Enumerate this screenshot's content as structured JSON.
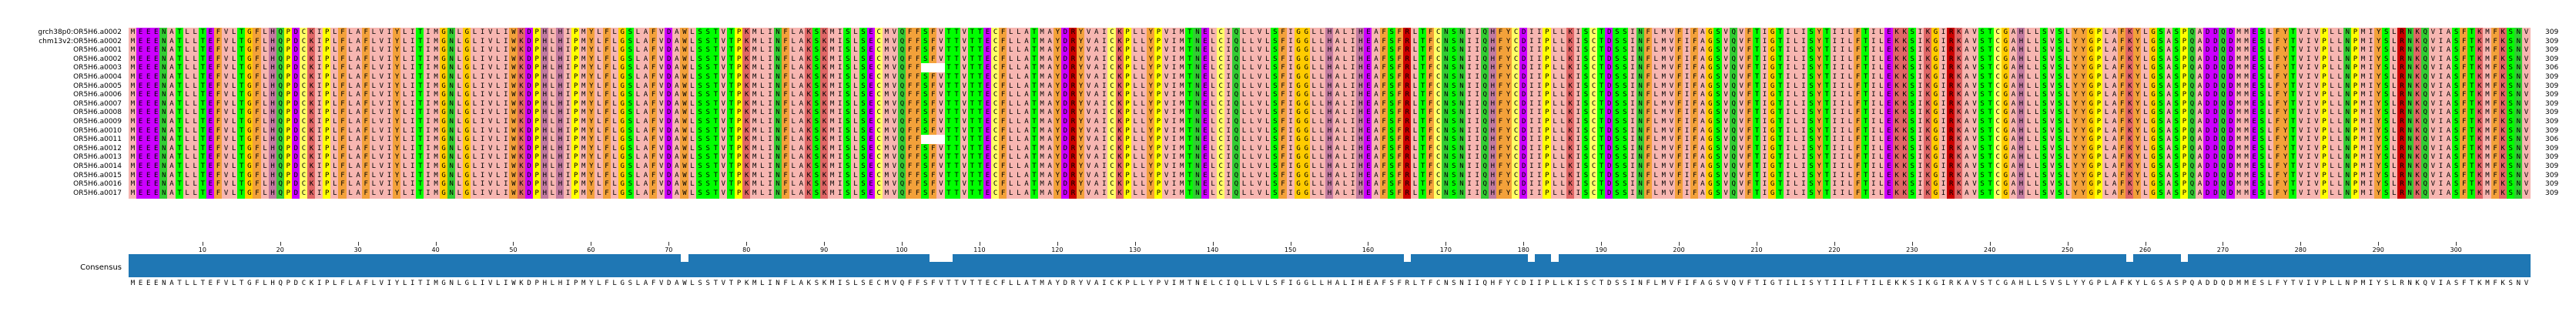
{
  "alignment": {
    "sequences": [
      {
        "name": "grch38p0:OR5H6.a0002",
        "count": "309",
        "seq": "MEEENATLLTEFVLTGFLHQPDCKIPLFLAFLVIYLITIMGNLGLIVLIWKDPHLHIPMYLFLGSLAFVDAWLSSTVTPKMLINFLAKSKMISLSECMVQFFSFVTTVTTECFLLATMAYDRYVAICKPLLYPVIMTNELCIQLLVLSFIGGLLHALIHEAFSFRLTFCNSNIIQHFYCDIIPLLKISCTDSSINFLMVFIFAGSVQVFTIGTILISYTIILFTILEKKSIKGIRKAVSTCGAHLLSVSLYYGPLAFKYLGSASPQADDQDMMESLFYTVIVPLLNPMIYSLRNKQVIASFTKMFKSNV"
      },
      {
        "name": "chm13v2:OR5H6.a0002",
        "count": "309",
        "seq": "MEEENATLLTEFVLTGFLHQPDCKIPLFLAFLVIYLITIMGNLGLIVLIWKDPHLHIPMYLFLGSLAFVDAWLSSTVTPKMLINFLAKSKMISLSECMVQFFSFVTTVTTECFLLATMAYDRYVAICKPLLYPVIMTNELCIQLLVLSFIGGLLHALIHEAFSFRLTFCNSNIIQHFYCDIIPLLKISCTDSSINFLMVFIFAGSVQVFTIGTILISYTIILFTILEKKSIKGIRKAVSTCGAHLLSVSLYYGPLAFKYLGSASPQADDQDMMESLFYTVIVPLLNPMIYSLRNKQVIASFTKMFKSNV"
      },
      {
        "name": "OR5H6.a0001",
        "count": "309",
        "seq": "MEEENATLLTEFVLTGFLHQPDCKIPLFLAFLVIYLITIMGNLGLIVLIWKDPHLHIPMYLFLGSLAFVDAWLSSTVTPKMLINFLAKSKMISLSECMVQFFSFVTTVTTECFLLATMAYDRYVAICKPLLYPVIMTNELCIQLLVLSFIGGLLHALIHEAFSFRLTFCNSNIIQHFYCDIIPLLKISCTDSSINFLMVFIFAGSVQVFTIGTILISYTIILFTILEKKSIKGIRKAVSTCGAHLLSVSLYYGPLAFKYLGSASPQADDQDMMESLFYTVIVPLLNPMIYSLRNKQVIASFTKMFKSNV"
      },
      {
        "name": "OR5H6.a0002",
        "count": "309",
        "seq": "MEEENATLLTEFVLTGFLHQPDCKIPLFLAFLVIYLITIMGNLGLIVLIWKDPHLHIPMYLFLGSLAFVDAWLSSTVTPKMLINFLAKSKMISLSECMVQFFSFVTTVTTECFLLATMAYDRYVAICKPLLYPVIMTNELCIQLLVLSFIGGLLHALIHEAFSFRLTFCNSNIIQHFYCDIIPLLKISCTDSSINFLMVFIFAGSVQVFTIGTILISYTIILFTILEKKSIKGIRKAVSTCGAHLLSVSLYYGPLAFKYLGSASPQADDQDMMESLFYTVIVPLLNPMIYSLRNKQVIASFTKMFKSNV"
      },
      {
        "name": "OR5H6.a0003",
        "count": "306",
        "seq": "MEEENATLLTEFVLTGFLHQPDCKIPLFLAFLVIYLITIMGNLGLIVLIWKDPHLHIPMYLFLGSLAFVDAWLSSTVTPKMLINFLAKSKMISLSECMVQFF---TTVTTECFLLATMAYDRYVAICKPLLYPVIMTNELCIQLLVLSFIGGLLHALIHEAFSFRLTFCNSNIIQHFYCDIIPLLKISCTDSSINFLMVFIFAGSVQVFTIGTILISYTIILFTILEKKSIKGIRKAVSTCGAHLLSVSLYYGPLAFKYLGSASPQADDQDMMESLFYTVIVPLLNPMIYSLRNKQVIASFTKMFKSNV"
      },
      {
        "name": "OR5H6.a0004",
        "count": "309",
        "seq": "MEEENATLLTEFVLTGFLHQPDCKIPLFLAFLVIYLITIMGNLGLIVLIWKDPHLHIPMYLFLGSLAFVDAWLSSTVTPKMLINFLAKSKMISLSECMVQFFSFVTTVTTECFLLATMAYDRYVAICKPLLYPVIMTNELCIQLLVLSFIGGLLHALIHEAFSFRLTFCNSNIIQHFYCDIIPLLKISCTDSSINFLMVFIFAGSVQVFTIGTILISYTIILFTILEKKSIKGIRKAVSTCGAHLLSVSLYYGPLAFKYLGSASPQADDQDMMESLFYTVIVPLLNPMIYSLRNKQVIASFTKMFKSNV"
      },
      {
        "name": "OR5H6.a0005",
        "count": "309",
        "seq": "MEEENATLLTEFVLTGFLHQPDCKIPLFLAFLVIYLITIMGNLGLIVLIWKDPHLHIPMYLFLGSLAFVDAWLSSTVTPKMLINFLAKSKMISLSECMVQFFSFVTTVTTECFLLATMAYDRYVAICKPLLYPVIMTNELCIQLLVLSFIGGLLHALIHEAFSFRLTFCNSNIIQHFYCDIIPLLKISCTDSSINFLMVFIFAGSVQVFTIGTILISYTIILFTILEKKSIKGIRKAVSTCGAHLLSVSLYYGPLAFKYLGSASPQADDQDMMESLFYTVIVPLLNPMIYSLRNKQVIASFTKMFKSNV"
      },
      {
        "name": "OR5H6.a0006",
        "count": "309",
        "seq": "MEEENATLLTEFVLTGFLHQPDCKIPLFLAFLVIYLITIMGNLGLIVLIWKDPHLHIPMYLFLGSLAFVDAWLSSTVTPKMLINFLAKSKMISLSECMVQFFSFVTTVTTECFLLATMAYDRYVAICKPLLYPVIMTNELCIQLLVLSFIGGLLHALIHEAFSFRLTFCNSNIIQHFYCDIIPLLKISCTDSSINFLMVFIFAGSVQVFTIGTILISYTIILFTILEKKSIKGIRKAVSTCGAHLLSVSLYYGPLAFKYLGSASPQADDQDMMESLFYTVIVPLLNPMIYSLRNKQVIASFTKMFKSNV"
      },
      {
        "name": "OR5H6.a0007",
        "count": "309",
        "seq": "MEEENATLLTEFVLTGFLHQPDCKIPLFLAFLVIYLITIMGNLGLIVLIWKDPHLHIPMYLFLGSLAFVDAWLSSTVTPKMLINFLAKSKMISLSECMVQFFSFVTTVTTECFLLATMAYDRYVAICKPLLYPVIMTNELCIQLLVLSFIGGLLHALIHEAFSFRLTFCNSNIIQHFYCDIIPLLKISCTDSSINFLMVFIFAGSVQVFTIGTILISYTIILFTILEKKSIKGIRKAVSTCGAHLLSVSLYYGPLAFKYLGSASPQADDQDMMESLFYTVIVPLLNPMIYSLRNKQVIASFTKMFKSNV"
      },
      {
        "name": "OR5H6.a0008",
        "count": "309",
        "seq": "MEEENATLLTEFVLTGFLHQPDCKIPLFLAFLVIYLITIMGNLGLIVLIWKDPHLHIPMYLFLGSLAFVDAWLSSTVTPKMLINFLAKSKMISLSECMVQFFSFVTTVTTECFLLATMAYDRYVAICKPLLYPVIMTNELCIQLLVLSFIGGLLHALIHEAFSFRLTFCNSNIIQHFYCDIIPLLKISCTDSSINFLMVFIFAGSVQVFTIGTILISYTIILFTILEKKSIKGIRKAVSTCGAHLLSVSLYYGPLAFKYLGSASPQADDQDMMESLFYTVIVPLLNPMIYSLRNKQVIASFTKMFKSNV"
      },
      {
        "name": "OR5H6.a0009",
        "count": "309",
        "seq": "MEEENATLLTEFVLTGFLHQPDCKIPLFLAFLVIYLITIMGNLGLIVLIWKDPHLHIPMYLFLGSLAFVDAWLSSTVTPKMLINFLAKSKMISLSECMVQFFSFVTTVTTECFLLATMAYDRYVAICKPLLYPVIMTNELCIQLLVLSFIGGLLHALIHEAFSFRLTFCNSNIIQHFYCDIIPLLKISCTDSSINFLMVFIFAGSVQVFTIGTILISYTIILFTILEKKSIKGIRKAVSTCGAHLLSVSLYYGPLAFKYLGSASPQADDQDMMESLFYTVIVPLLNPMIYSLRNKQVIASFTKMFKSNV"
      },
      {
        "name": "OR5H6.a0010",
        "count": "309",
        "seq": "MEEENATLLTEFVLTGFLHQPDCKIPLFLAFLVIYLITIMGNLGLIVLIWKDPHLHIPMYLFLGSLAFVDAWLSSTVTPKMLINFLAKSKMISLSECMVQFFSFVTTVTTECFLLATMAYDRYVAICKPLLYPVIMTNELCIQLLVLSFIGGLLHALIHEAFSFRLTFCNSNIIQHFYCDIIPLLKISCTDSSINFLMVFIFAGSVQVFTIGTILISYTIILFTILEKKSIKGIRKAVSTCGAHLLSVSLYYGPLAFKYLGSASPQADDQDMMESLFYTVIVPLLNPMIYSLRNKQVIASFTKMFKSNV"
      },
      {
        "name": "OR5H6.a0011",
        "count": "306",
        "seq": "MEEENATLLTEFVLTGFLHQPDCKIPLFLAFLVIYLITIMGNLGLIVLIWKDPHLHIPMYLFLGSLAFVDAWLSSTVTPKMLINFLAKSKMISLSECMVQFF---TTVTTECFLLATMAYDRYVAICKPLLYPVIMTNELCIQLLVLSFIGGLLHALIHEAFSFRLTFCNSNIIQHFYCDIIPLLKISCTDSSINFLMVFIFAGSVQVFTIGTILISYTIILFTILEKKSIKGIRKAVSTCGAHLLSVSLYYGPLAFKYLGSASPQADDQDMMESLFYTVIVPLLNPMIYSLRNKQVIASFTKMFKSNV"
      },
      {
        "name": "OR5H6.a0012",
        "count": "309",
        "seq": "MEEENATLLTEFVLTGFLHQPDCKIPLFLAFLVIYLITIMGNLGLIVLIWKDPHLHIPMYLFLGSLAFVDAWLSSTVTPKMLINFLAKSKMISLSECMVQFFSFVTTVTTECFLLATMAYDRYVAICKPLLYPVIMTNELCIQLLVLSFIGGLLHALIHEAFSFRLTFCNSNIIQHFYCDIIPLLKISCTDSSINFLMVFIFAGSVQVFTIGTILISYTIILFTILEKKSIKGIRKAVSTCGAHLLSVSLYYGPLAFKYLGSASPQADDQDMMESLFYTVIVPLLNPMIYSLRNKQVIASFTKMFKSNV"
      },
      {
        "name": "OR5H6.a0013",
        "count": "309",
        "seq": "MEEENATLLTEFVLTGFLHQPDCKIPLFLAFLVIYLITIMGNLGLIVLIWKDPHLHIPMYLFLGSLAFVDAWLSSTVTPKMLINFLAKSKMISLSECMVQFFSFVTTVTTECFLLATMAYDRYVAICKPLLYPVIMTNELCIQLLVLSFIGGLLHALIHEAFSFRLTFCNSNIIQHFYCDIIPLLKISCTDSSINFLMVFIFAGSVQVFTIGTILISYTIILFTILEKKSIKGIRKAVSTCGAHLLSVSLYYGPLAFKYLGSASPQADDQDMMESLFYTVIVPLLNPMIYSLRNKQVIASFTKMFKSNV"
      },
      {
        "name": "OR5H6.a0014",
        "count": "309",
        "seq": "MEEENATLLTEFVLTGFLHQPDCKIPLFLAFLVIYLITIMGNLGLIVLIWKDPHLHIPMYLFLGSLAFVDAWLSSTVTPKMLINFLAKSKMISLSECMVQFFSFVTTVTTECFLLATMAYDRYVAICKPLLYPVIMTNELCIQLLVLSFIGGLLHALIHEAFSFRLTFCNSNIIQHFYCDIIPLLKISCTDSSINFLMVFIFAGSVQVFTIGTILISYTIILFTILEKKSIKGIRKAVSTCGAHLLSVSLYYGPLAFKYLGSASPQADDQDMMESLFYTVIVPLLNPMIYSLRNKQVIASFTKMFKSNV"
      },
      {
        "name": "OR5H6.a0015",
        "count": "309",
        "seq": "MEEENATLLTEFVLTGFLHQPDCKIPLFLAFLVIYLITIMGNLGLIVLIWKDPHLHIPMYLFLGSLAFVDAWLSSTVTPKMLINFLAKSKMISLSECMVQFFSFVTTVTTECFLLATMAYDRYVAICKPLLYPVIMTNELCIQLLVLSFIGGLLHALIHEAFSFRLTFCNSNIIQHFYCDIIPLLKISCTDSSINFLMVFIFAGSVQVFTIGTILISYTIILFTILEKKSIKGIRKAVSTCGAHLLSVSLYYGPLAFKYLGSASPQADDQDMMESLFYTVIVPLLNPMIYSLRNKQVIASFTKMFKSNV"
      },
      {
        "name": "OR5H6.a0016",
        "count": "309",
        "seq": "MEEENATLLTEFVLTGFLHQPDCKIPLFLAFLVIYLITIMGNLGLIVLIWKDPHLHIPMYLFLGSLAFVDAWLSSTVTPKMLINFLAKSKMISLSECMVQFFSFVTTVTTECFLLATMAYDRYVAICKPLLYPVIMTNELCIQLLVLSFIGGLLHALIHEAFSFRLTFCNSNIIQHFYCDIIPLLKISCTDSSINFLMVFIFAGSVQVFTIGTILISYTIILFTILEKKSIKGIRKAVSTCGAHLLSVSLYYGPLAFKYLGSASPQADDQDMMESLFYTVIVPLLNPMIYSLRNKQVIASFTKMFKSNV"
      },
      {
        "name": "OR5H6.a0017",
        "count": "309",
        "seq": "MEEENATLLTEFVLTGFLHQPDCKIPLFLAFLVIYLITIMGNLGLIVLIWKDPHLHIPMYLFLGSLAFVDAWLSSTVTPKMLINFLAKSKMISLSECMVQFFSFVTTVTTECFLLATMAYDRYVAICKPLLYPVIMTNELCIQLLVLSFIGGLLHALIHEAFSFRLTFCNSNIIQHFYCDIIPLLKISCTDSSINFLMVFIFAGSVQVFTIGTILISYTIILFTILEKKSIKGIRKAVSTCGAHLLSVSLYYGPLAFKYLGSASPQADDQDMMESLFYTVIVPLLNPMIYSLRNKQVIASFTKMFKSNV"
      }
    ],
    "ruler_labels": [
      "10",
      "20",
      "30",
      "40",
      "50",
      "60",
      "70",
      "80",
      "90",
      "100",
      "110",
      "120",
      "130",
      "140",
      "150",
      "160",
      "170",
      "180",
      "190",
      "200",
      "210",
      "220",
      "230",
      "240",
      "250",
      "260",
      "270",
      "280",
      "290",
      "300"
    ],
    "consensus_label": "Consensus",
    "consensus_seq": "MEEENATLLTEFVLTGFLHQPDCKIPLFLAFLVIYLITIMGNLGLIVLIWKDPHLHIPMYLFLGSLAFVDAWLSSTVTPKMLINFLAKSKMISLSECMVQFFSFVTTVTTECFLLATMAYDRYVAICKPLLYPVIMTNELCIQLLVLSFIGGLLHALIHEAFSFRLTFCNSNIIQHFYCDIIPLLKISCTDSSINFLMVFIFAGSVQVFTIGTILISYTIILFTILEKKSIKGIRKAVSTCGAHLLSVSLYYGPLAFKYLGSASPQADDQDMMESLFYTVIVPLLNPMIYSLRNKQVIASFTKMFKSNV",
    "consensus_dips": [
      71,
      103,
      104,
      105,
      164,
      180,
      183,
      257,
      264
    ],
    "residue_colors": {
      "A": "#f7b6b1",
      "I": "#f7b6b1",
      "L": "#f7b6b1",
      "M": "#f7b6b1",
      "V": "#f7b6b1",
      "F": "#f3a13a",
      "W": "#f3a13a",
      "Y": "#f3a13a",
      "K": "#e06666",
      "R": "#cc0000",
      "H": "#c27ba0",
      "D": "#cc00ff",
      "E": "#cc00ff",
      "S": "#00ff00",
      "T": "#00ff00",
      "N": "#33cc33",
      "Q": "#33cc33",
      "G": "#ffcc00",
      "P": "#ffff00",
      "C": "#ffff66",
      "-": "#ffffff"
    },
    "consensus_bar_color": "#1f77b4"
  }
}
